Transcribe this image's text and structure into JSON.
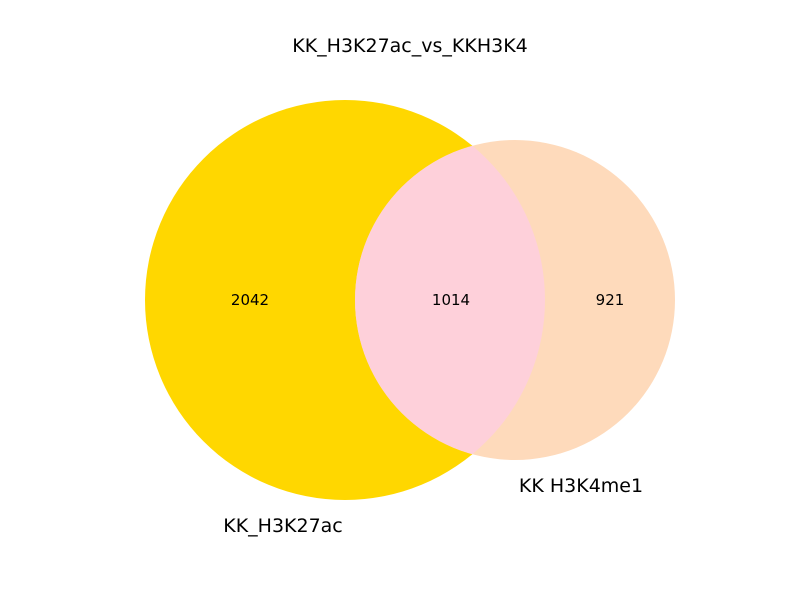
{
  "chart_data": {
    "type": "venn",
    "title": "KK_H3K27ac_vs_KKH3K4",
    "sets": [
      {
        "name": "KK_H3K27ac",
        "only": 2042,
        "color": "#ffd700"
      },
      {
        "name": "KK H3K4me1",
        "only": 921,
        "color": "#fedabb"
      }
    ],
    "intersection": {
      "value": 1014,
      "color": "#fed0da"
    }
  }
}
